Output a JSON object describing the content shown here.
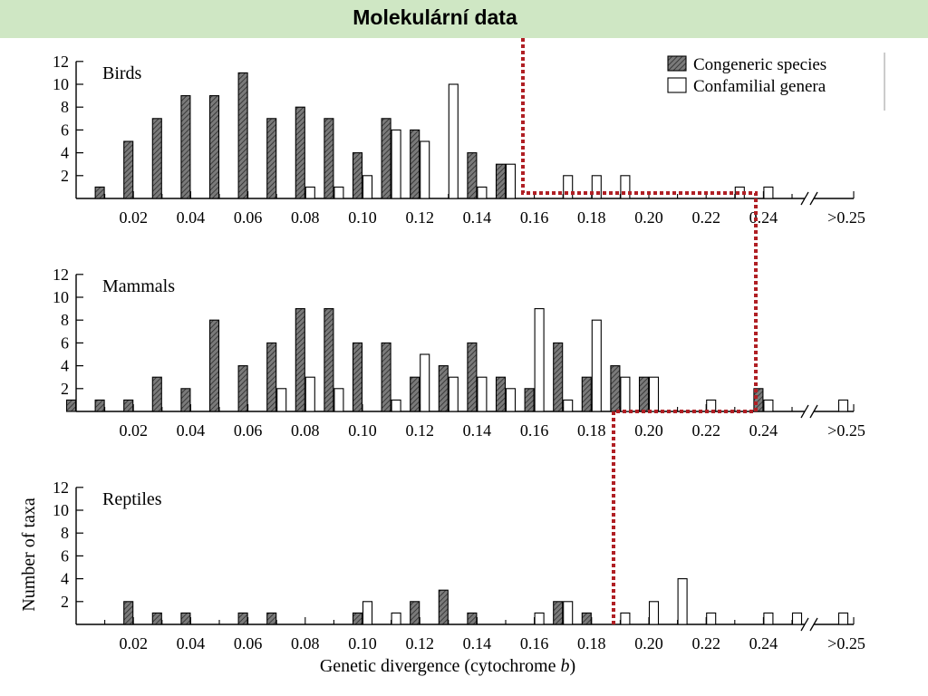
{
  "header": {
    "title": "Molekulární data"
  },
  "colors": {
    "banner": "#cfe7c4",
    "connector": "#b01f24",
    "congeneric_fill": "#6a6a6a",
    "confamilial_fill": "#ffffff"
  },
  "chart_data": {
    "type": "bar",
    "xlabel_prefix": "Genetic divergence (cytochrome ",
    "xlabel_italic": "b",
    "xlabel_suffix": ")",
    "ylabel": "Number of taxa",
    "x_tick_labels": [
      "0.02",
      "0.04",
      "0.06",
      "0.08",
      "0.10",
      "0.12",
      "0.14",
      "0.16",
      "0.18",
      "0.20",
      "0.22",
      "0.24",
      ">0.25"
    ],
    "y_ticks": [
      2,
      4,
      6,
      8,
      10,
      12
    ],
    "ylim": [
      0,
      12
    ],
    "legend": {
      "position": "top-right",
      "entries": [
        {
          "label": "Congeneric species",
          "style": "hatched"
        },
        {
          "label": "Confamilial genera",
          "style": "open"
        }
      ]
    },
    "panels": [
      {
        "name": "Birds",
        "congeneric": [
          {
            "x": 0.01,
            "y": 1
          },
          {
            "x": 0.02,
            "y": 5
          },
          {
            "x": 0.03,
            "y": 7
          },
          {
            "x": 0.04,
            "y": 9
          },
          {
            "x": 0.05,
            "y": 9
          },
          {
            "x": 0.06,
            "y": 11
          },
          {
            "x": 0.07,
            "y": 7
          },
          {
            "x": 0.08,
            "y": 8
          },
          {
            "x": 0.09,
            "y": 7
          },
          {
            "x": 0.1,
            "y": 4
          },
          {
            "x": 0.11,
            "y": 7
          },
          {
            "x": 0.12,
            "y": 6
          },
          {
            "x": 0.14,
            "y": 4
          },
          {
            "x": 0.15,
            "y": 3
          }
        ],
        "confamilial": [
          {
            "x": 0.08,
            "y": 1
          },
          {
            "x": 0.09,
            "y": 1
          },
          {
            "x": 0.1,
            "y": 2
          },
          {
            "x": 0.11,
            "y": 6
          },
          {
            "x": 0.12,
            "y": 5
          },
          {
            "x": 0.13,
            "y": 10
          },
          {
            "x": 0.14,
            "y": 1
          },
          {
            "x": 0.15,
            "y": 3
          },
          {
            "x": 0.17,
            "y": 2
          },
          {
            "x": 0.18,
            "y": 2
          },
          {
            "x": 0.19,
            "y": 2
          },
          {
            "x": 0.23,
            "y": 1
          },
          {
            "x": 0.24,
            "y": 1
          }
        ]
      },
      {
        "name": "Mammals",
        "congeneric": [
          {
            "x": 0.0,
            "y": 1
          },
          {
            "x": 0.01,
            "y": 1
          },
          {
            "x": 0.02,
            "y": 1
          },
          {
            "x": 0.03,
            "y": 3
          },
          {
            "x": 0.04,
            "y": 2
          },
          {
            "x": 0.05,
            "y": 8
          },
          {
            "x": 0.06,
            "y": 4
          },
          {
            "x": 0.07,
            "y": 6
          },
          {
            "x": 0.08,
            "y": 9
          },
          {
            "x": 0.09,
            "y": 9
          },
          {
            "x": 0.1,
            "y": 6
          },
          {
            "x": 0.11,
            "y": 6
          },
          {
            "x": 0.12,
            "y": 3
          },
          {
            "x": 0.13,
            "y": 4
          },
          {
            "x": 0.14,
            "y": 6
          },
          {
            "x": 0.15,
            "y": 3
          },
          {
            "x": 0.16,
            "y": 2
          },
          {
            "x": 0.17,
            "y": 6
          },
          {
            "x": 0.18,
            "y": 3
          },
          {
            "x": 0.19,
            "y": 4
          },
          {
            "x": 0.2,
            "y": 3
          },
          {
            "x": 0.24,
            "y": 2
          }
        ],
        "confamilial": [
          {
            "x": 0.07,
            "y": 2
          },
          {
            "x": 0.08,
            "y": 3
          },
          {
            "x": 0.09,
            "y": 2
          },
          {
            "x": 0.11,
            "y": 1
          },
          {
            "x": 0.12,
            "y": 5
          },
          {
            "x": 0.13,
            "y": 3
          },
          {
            "x": 0.14,
            "y": 3
          },
          {
            "x": 0.15,
            "y": 2
          },
          {
            "x": 0.16,
            "y": 9
          },
          {
            "x": 0.17,
            "y": 1
          },
          {
            "x": 0.18,
            "y": 8
          },
          {
            "x": 0.19,
            "y": 3
          },
          {
            "x": 0.2,
            "y": 3
          },
          {
            "x": 0.22,
            "y": 1
          },
          {
            "x": 0.24,
            "y": 1
          },
          {
            "x": 0.27,
            "y": 1
          }
        ]
      },
      {
        "name": "Reptiles",
        "congeneric": [
          {
            "x": 0.02,
            "y": 2
          },
          {
            "x": 0.03,
            "y": 1
          },
          {
            "x": 0.04,
            "y": 1
          },
          {
            "x": 0.06,
            "y": 1
          },
          {
            "x": 0.07,
            "y": 1
          },
          {
            "x": 0.1,
            "y": 1
          },
          {
            "x": 0.12,
            "y": 2
          },
          {
            "x": 0.13,
            "y": 3
          },
          {
            "x": 0.14,
            "y": 1
          },
          {
            "x": 0.17,
            "y": 2
          },
          {
            "x": 0.18,
            "y": 1
          }
        ],
        "confamilial": [
          {
            "x": 0.1,
            "y": 2
          },
          {
            "x": 0.11,
            "y": 1
          },
          {
            "x": 0.16,
            "y": 1
          },
          {
            "x": 0.17,
            "y": 2
          },
          {
            "x": 0.19,
            "y": 1
          },
          {
            "x": 0.2,
            "y": 2
          },
          {
            "x": 0.21,
            "y": 4
          },
          {
            "x": 0.22,
            "y": 1
          },
          {
            "x": 0.24,
            "y": 1
          },
          {
            "x": 0.25,
            "y": 1
          },
          {
            "x": 0.27,
            "y": 1
          }
        ]
      }
    ]
  }
}
